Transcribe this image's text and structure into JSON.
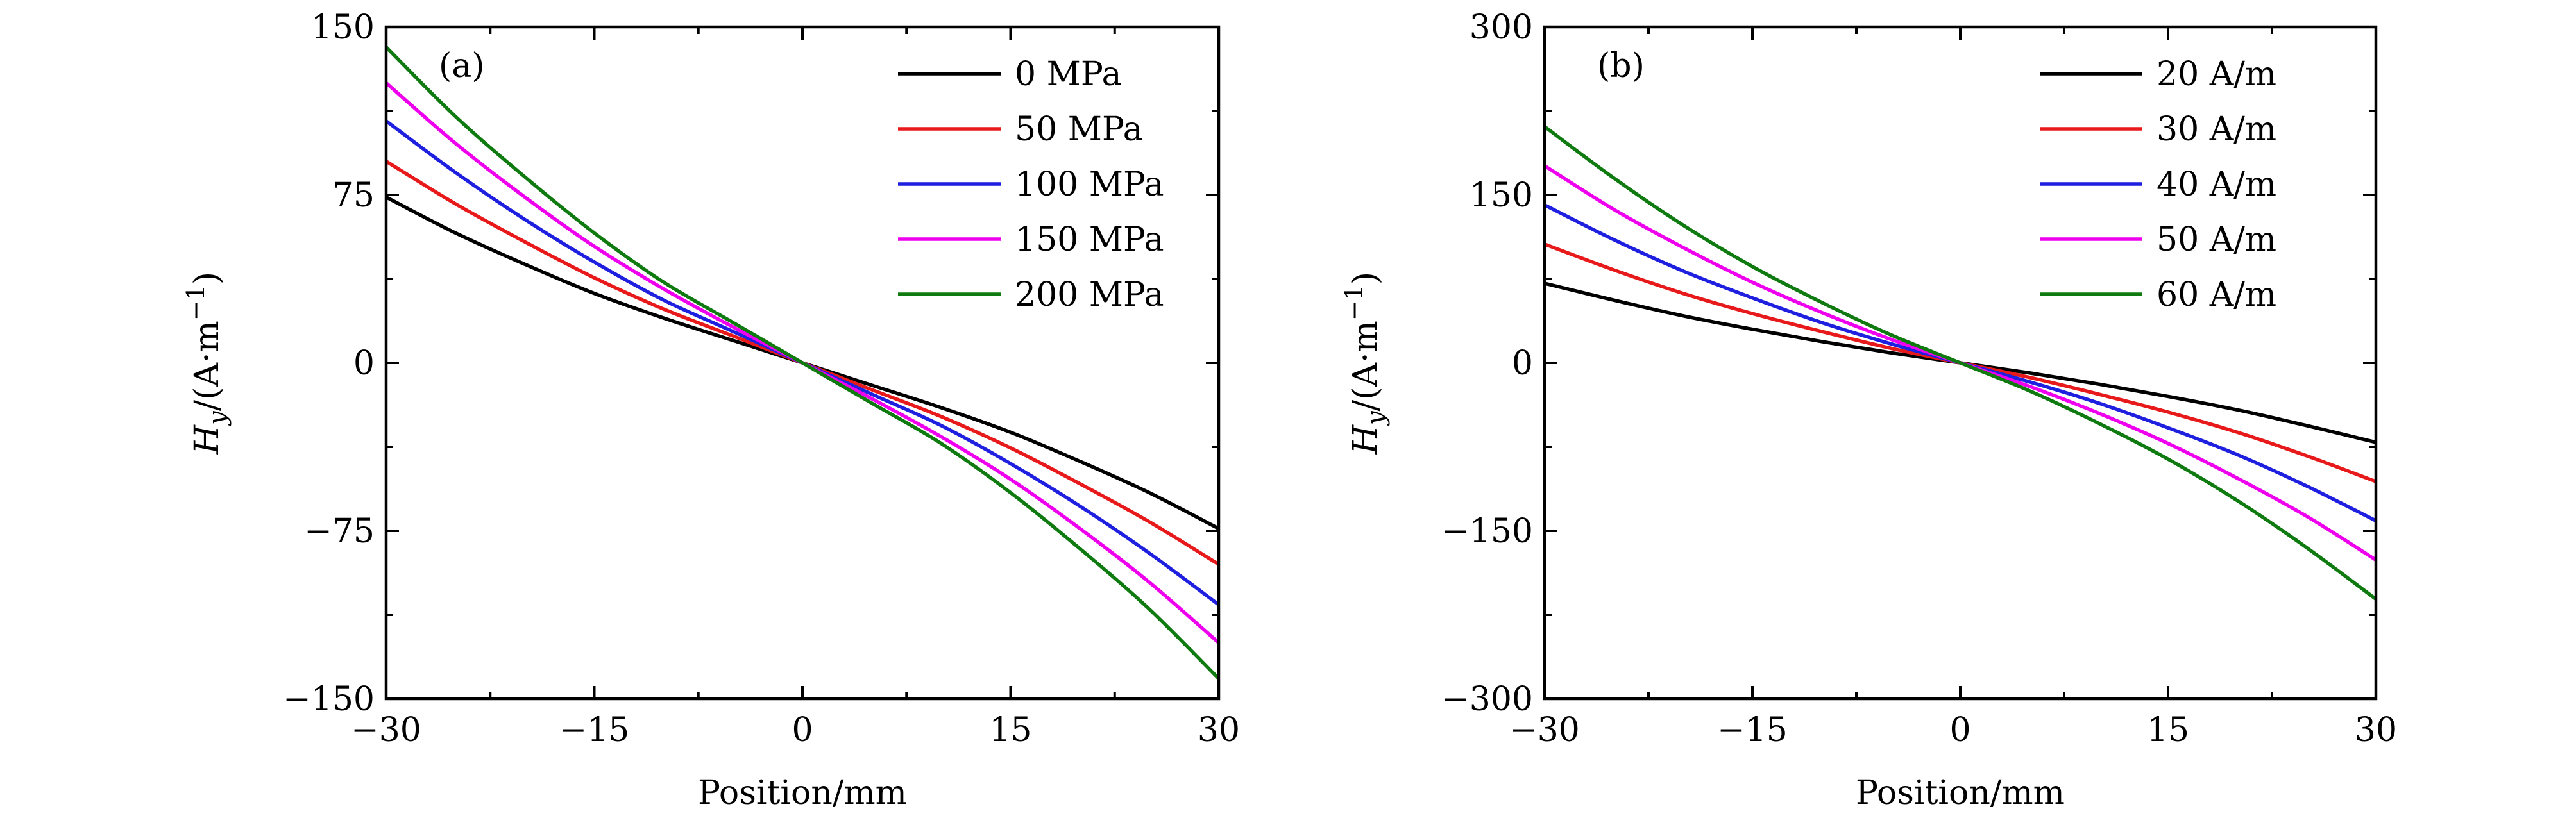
{
  "chart_data": [
    {
      "type": "line",
      "panel_label": "(a)",
      "xlabel": "Position/mm",
      "ylabel": {
        "var": "H",
        "sub": "y",
        "rest": "/(A·m",
        "sup": "−1",
        "close": ")"
      },
      "xlim": [
        -30,
        30
      ],
      "ylim": [
        -150,
        150
      ],
      "xticks": [
        -30,
        -15,
        0,
        15,
        30
      ],
      "xtick_labels": [
        "−30",
        "−15",
        "0",
        "15",
        "30"
      ],
      "yticks": [
        -150,
        -75,
        0,
        75,
        150
      ],
      "ytick_labels": [
        "−150",
        "−75",
        "0",
        "75",
        "150"
      ],
      "legend_position": "top-right",
      "x": [
        -30,
        -25,
        -20,
        -15,
        -10,
        -5,
        0,
        5,
        10,
        15,
        20,
        25,
        30
      ],
      "series": [
        {
          "name": "0 MPa",
          "color": "#000000",
          "values": [
            74,
            58,
            44,
            31,
            20,
            10,
            0,
            -10,
            -20,
            -31,
            -44,
            -58,
            -74
          ]
        },
        {
          "name": "50 MPa",
          "color": "#e8191a",
          "values": [
            90,
            71,
            54,
            38,
            24,
            12,
            0,
            -12,
            -24,
            -38,
            -54,
            -71,
            -90
          ]
        },
        {
          "name": "100 MPa",
          "color": "#1f1fe0",
          "values": [
            108,
            85,
            64,
            45,
            28,
            14,
            0,
            -14,
            -28,
            -45,
            -64,
            -85,
            -108
          ]
        },
        {
          "name": "150 MPa",
          "color": "#ee00ee",
          "values": [
            125,
            98,
            74,
            52,
            33,
            16,
            0,
            -16,
            -33,
            -52,
            -74,
            -98,
            -125
          ]
        },
        {
          "name": "200 MPa",
          "color": "#0f7a0f",
          "values": [
            141,
            110,
            83,
            58,
            36,
            18,
            0,
            -18,
            -36,
            -58,
            -83,
            -110,
            -141
          ]
        }
      ]
    },
    {
      "type": "line",
      "panel_label": "(b)",
      "xlabel": "Position/mm",
      "ylabel": {
        "var": "H",
        "sub": "y",
        "rest": "/(A·m",
        "sup": "−1",
        "close": ")"
      },
      "xlim": [
        -30,
        30
      ],
      "ylim": [
        -300,
        300
      ],
      "xticks": [
        -30,
        -15,
        0,
        15,
        30
      ],
      "xtick_labels": [
        "−30",
        "−15",
        "0",
        "15",
        "30"
      ],
      "yticks": [
        -300,
        -150,
        0,
        150,
        300
      ],
      "ytick_labels": [
        "−300",
        "−150",
        "0",
        "150",
        "300"
      ],
      "legend_position": "top-right",
      "x": [
        -30,
        -25,
        -20,
        -15,
        -10,
        -5,
        0,
        5,
        10,
        15,
        20,
        25,
        30
      ],
      "series": [
        {
          "name": "20 A/m",
          "color": "#000000",
          "values": [
            71,
            56,
            42,
            30,
            19,
            9,
            0,
            -9,
            -19,
            -30,
            -42,
            -56,
            -71
          ]
        },
        {
          "name": "30 A/m",
          "color": "#e8191a",
          "values": [
            106,
            83,
            62,
            44,
            28,
            13,
            0,
            -13,
            -28,
            -44,
            -62,
            -83,
            -106
          ]
        },
        {
          "name": "40 A/m",
          "color": "#1f1fe0",
          "values": [
            141,
            110,
            82,
            58,
            36,
            17,
            0,
            -17,
            -36,
            -58,
            -82,
            -110,
            -141
          ]
        },
        {
          "name": "50 A/m",
          "color": "#ee00ee",
          "values": [
            176,
            137,
            103,
            72,
            45,
            21,
            0,
            -21,
            -45,
            -72,
            -103,
            -137,
            -176
          ]
        },
        {
          "name": "60 A/m",
          "color": "#0f7a0f",
          "values": [
            211,
            165,
            123,
            86,
            54,
            25,
            0,
            -25,
            -54,
            -86,
            -123,
            -165,
            -211
          ]
        }
      ]
    }
  ]
}
